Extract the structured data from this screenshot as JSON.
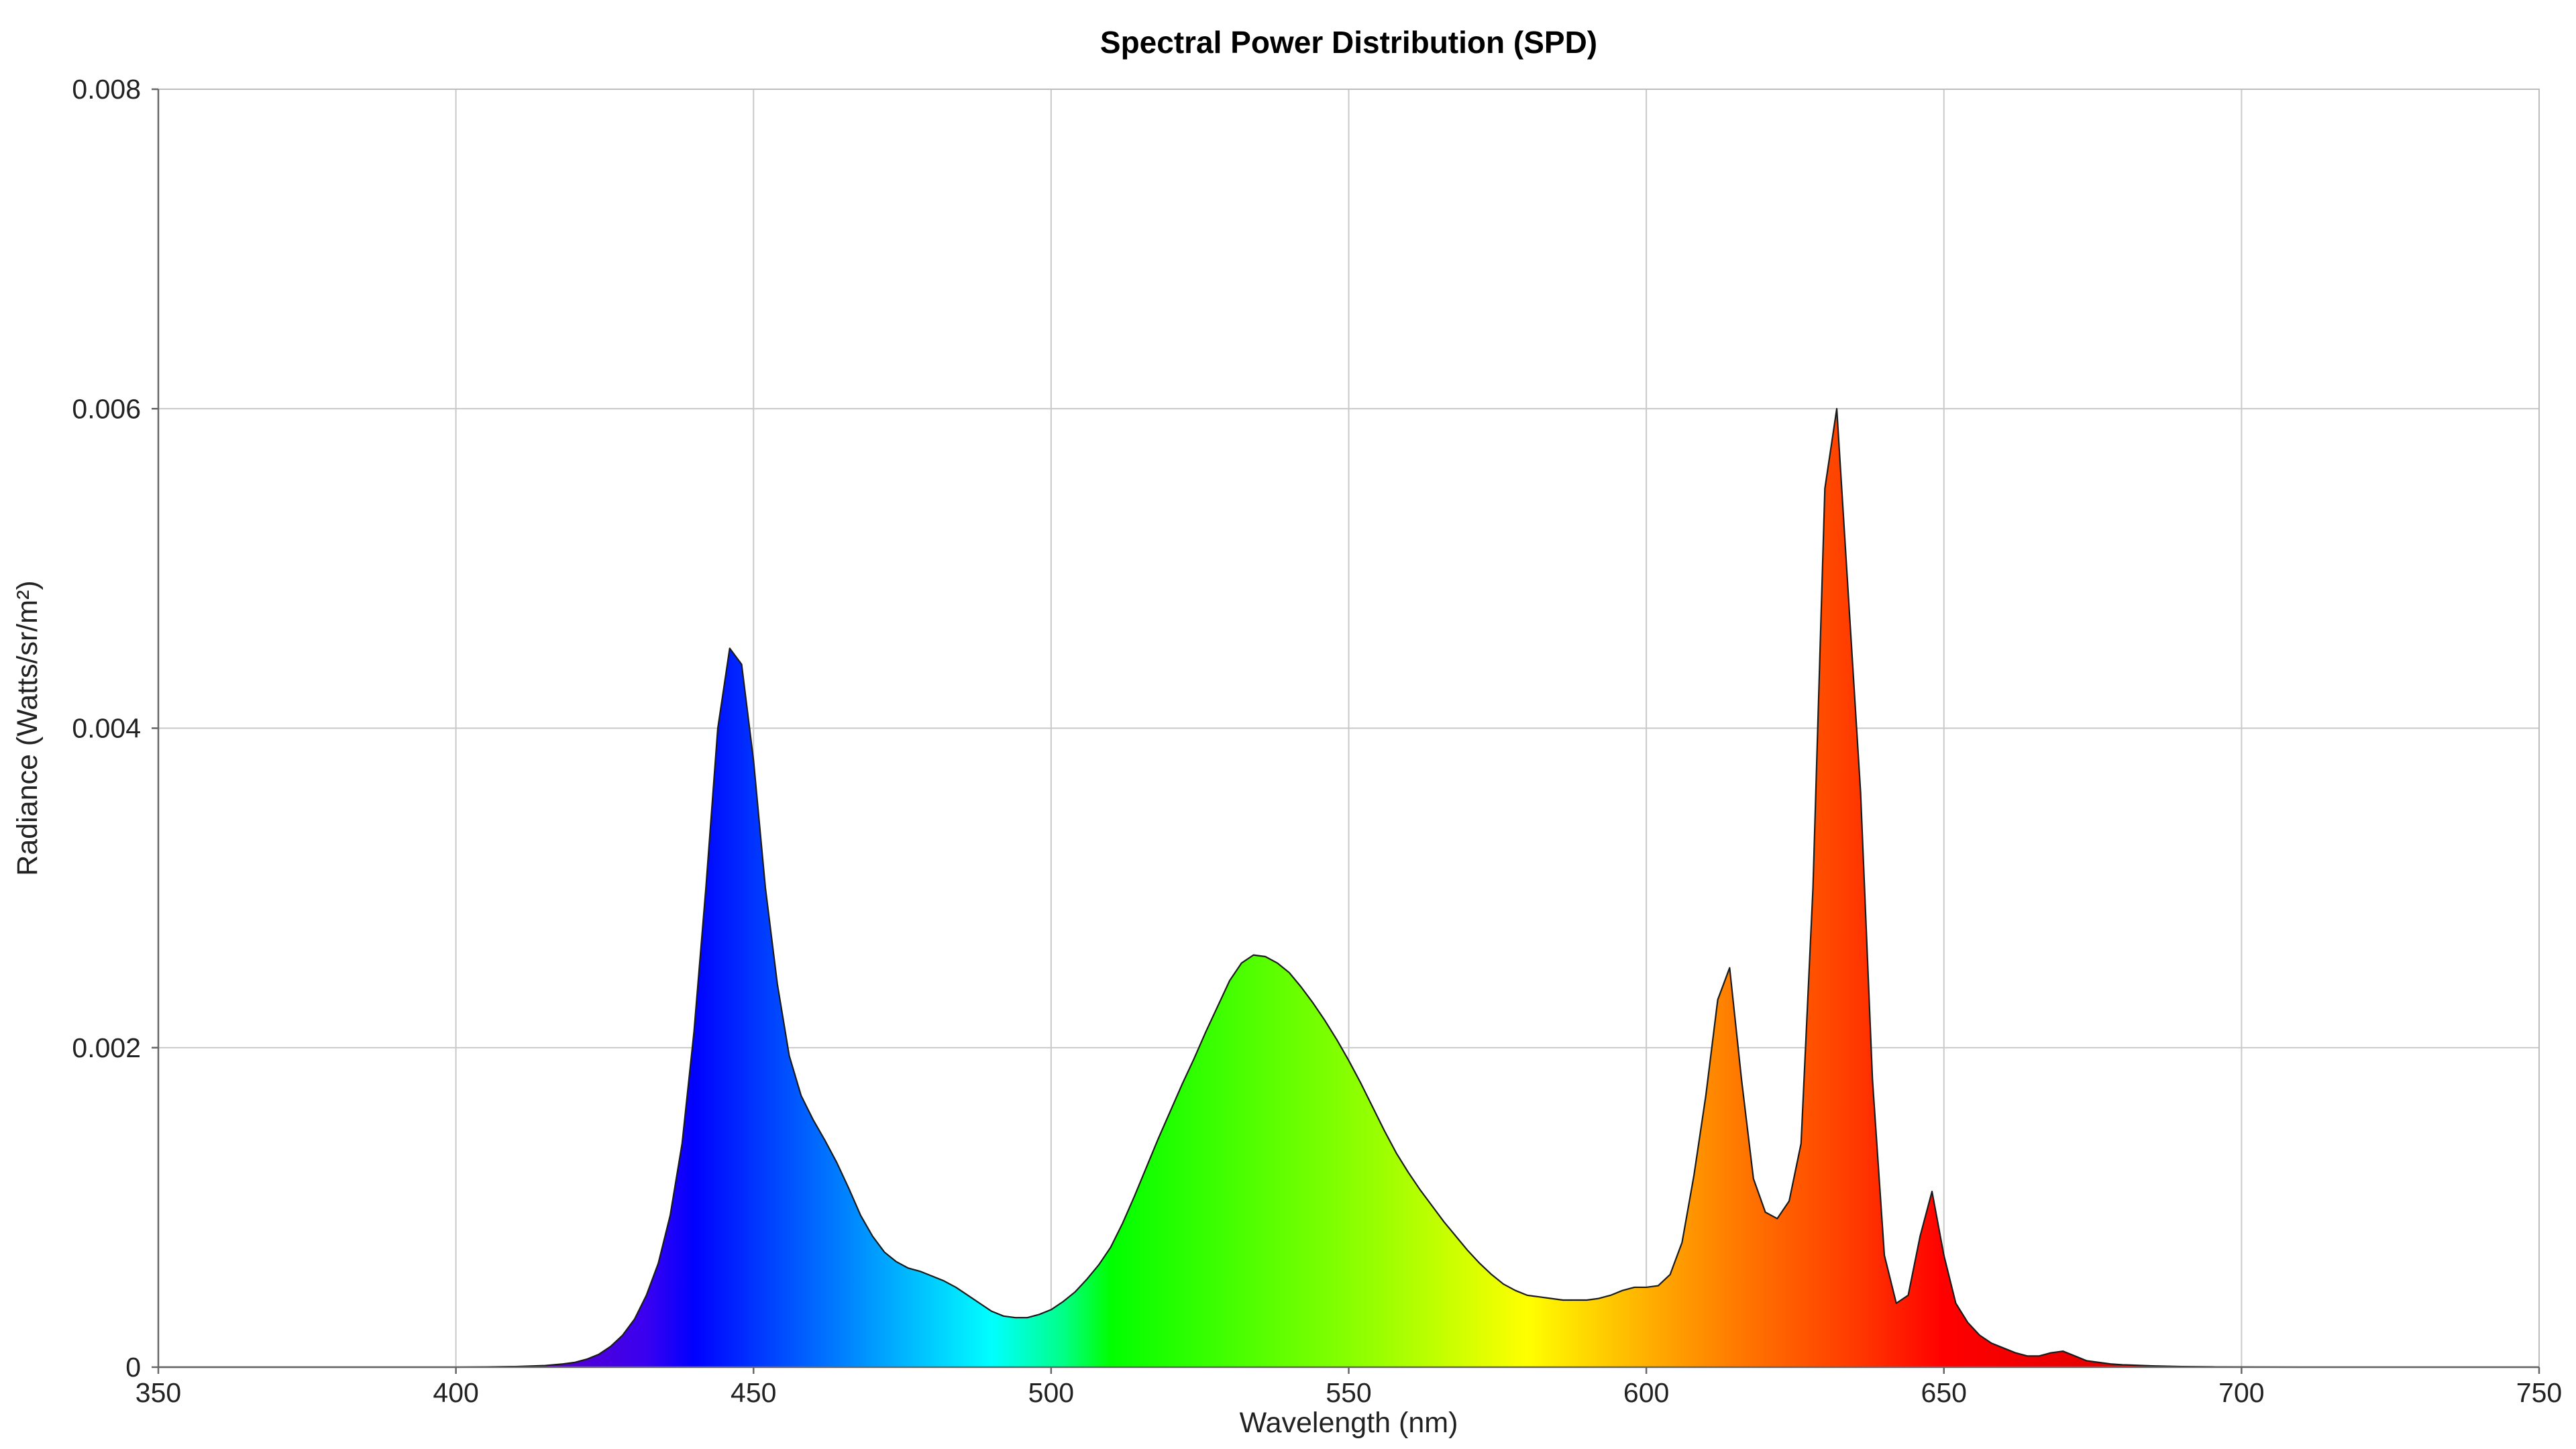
{
  "chart_data": {
    "type": "area",
    "title": "Spectral Power Distribution (SPD)",
    "xlabel": "Wavelength (nm)",
    "ylabel": "Radiance (Watts/sr/m²)",
    "xlim": [
      350,
      750
    ],
    "ylim": [
      0,
      0.008
    ],
    "x_ticks": [
      350,
      400,
      450,
      500,
      550,
      600,
      650,
      700,
      750
    ],
    "y_ticks": [
      0,
      0.002,
      0.004,
      0.006,
      0.008
    ],
    "x_tick_labels": [
      "350",
      "400",
      "450",
      "500",
      "550",
      "600",
      "650",
      "700",
      "750"
    ],
    "y_tick_labels": [
      "0",
      "0.002",
      "0.004",
      "0.006",
      "0.008"
    ],
    "grid": true,
    "fill": "visible-spectrum-gradient",
    "spectrum_colors": [
      {
        "nm": 380,
        "color": "#2a007a"
      },
      {
        "nm": 415,
        "color": "#5a00c8"
      },
      {
        "nm": 432,
        "color": "#3a00f0"
      },
      {
        "nm": 440,
        "color": "#0000ff"
      },
      {
        "nm": 460,
        "color": "#0066ff"
      },
      {
        "nm": 475,
        "color": "#00b4ff"
      },
      {
        "nm": 490,
        "color": "#00ffff"
      },
      {
        "nm": 502,
        "color": "#00ff88"
      },
      {
        "nm": 510,
        "color": "#00ff00"
      },
      {
        "nm": 530,
        "color": "#44ff00"
      },
      {
        "nm": 555,
        "color": "#99ff00"
      },
      {
        "nm": 580,
        "color": "#ffff00"
      },
      {
        "nm": 600,
        "color": "#ffb000"
      },
      {
        "nm": 615,
        "color": "#ff7a00"
      },
      {
        "nm": 635,
        "color": "#ff3a00"
      },
      {
        "nm": 650,
        "color": "#ff0000"
      },
      {
        "nm": 700,
        "color": "#cc0000"
      },
      {
        "nm": 750,
        "color": "#990000"
      }
    ],
    "series": [
      {
        "x": [
          350,
          400,
          405,
          410,
          415,
          418,
          420,
          422,
          424,
          426,
          428,
          430,
          432,
          434,
          436,
          438,
          440,
          442,
          444,
          446,
          448,
          450,
          452,
          454,
          456,
          458,
          460,
          462,
          464,
          466,
          468,
          470,
          472,
          474,
          476,
          478,
          480,
          482,
          484,
          486,
          488,
          490,
          492,
          494,
          496,
          498,
          500,
          502,
          504,
          506,
          508,
          510,
          512,
          514,
          516,
          518,
          520,
          522,
          524,
          526,
          528,
          530,
          532,
          534,
          536,
          538,
          540,
          542,
          544,
          546,
          548,
          550,
          552,
          554,
          556,
          558,
          560,
          562,
          564,
          566,
          568,
          570,
          572,
          574,
          576,
          578,
          580,
          582,
          584,
          586,
          588,
          590,
          592,
          594,
          596,
          598,
          600,
          602,
          604,
          606,
          608,
          610,
          612,
          614,
          616,
          618,
          620,
          622,
          624,
          626,
          628,
          630,
          632,
          634,
          636,
          638,
          640,
          642,
          644,
          646,
          648,
          650,
          652,
          654,
          656,
          658,
          660,
          662,
          664,
          666,
          668,
          670,
          672,
          674,
          676,
          678,
          680,
          685,
          690,
          695,
          700,
          710,
          720,
          750
        ],
        "values": [
          0,
          0,
          1.5e-06,
          4e-06,
          1e-05,
          2e-05,
          3e-05,
          5e-05,
          8e-05,
          0.00013,
          0.0002,
          0.0003,
          0.00045,
          0.00065,
          0.00095,
          0.0014,
          0.0021,
          0.003,
          0.004,
          0.0045,
          0.0044,
          0.0038,
          0.003,
          0.0024,
          0.00195,
          0.0017,
          0.00155,
          0.00142,
          0.00128,
          0.00112,
          0.00095,
          0.00082,
          0.00072,
          0.00066,
          0.00062,
          0.0006,
          0.00057,
          0.00054,
          0.0005,
          0.00045,
          0.0004,
          0.00035,
          0.00032,
          0.00031,
          0.00031,
          0.00033,
          0.00036,
          0.00041,
          0.00047,
          0.00055,
          0.00064,
          0.00075,
          0.0009,
          0.00107,
          0.00125,
          0.00143,
          0.0016,
          0.00177,
          0.00193,
          0.0021,
          0.00226,
          0.00242,
          0.00253,
          0.00258,
          0.00257,
          0.00253,
          0.00247,
          0.00238,
          0.00228,
          0.00217,
          0.00205,
          0.00192,
          0.00178,
          0.00163,
          0.00148,
          0.00134,
          0.00122,
          0.00111,
          0.00101,
          0.00091,
          0.00082,
          0.00073,
          0.00065,
          0.00058,
          0.00052,
          0.00048,
          0.00045,
          0.00044,
          0.00043,
          0.00042,
          0.00042,
          0.00042,
          0.00043,
          0.00045,
          0.00048,
          0.0005,
          0.0005,
          0.00051,
          0.00058,
          0.00078,
          0.0012,
          0.0017,
          0.0023,
          0.0025,
          0.0018,
          0.00118,
          0.00097,
          0.00093,
          0.00104,
          0.0014,
          0.003,
          0.0055,
          0.006,
          0.0048,
          0.0036,
          0.0018,
          0.0007,
          0.0004,
          0.00045,
          0.00082,
          0.0011,
          0.0007,
          0.0004,
          0.00028,
          0.0002,
          0.00015,
          0.00012,
          9e-05,
          7e-05,
          7e-05,
          9e-05,
          0.0001,
          7e-05,
          4e-05,
          3e-05,
          2e-05,
          1.5e-05,
          8e-06,
          4e-06,
          2e-06,
          1e-06,
          0,
          0,
          0
        ]
      }
    ]
  }
}
